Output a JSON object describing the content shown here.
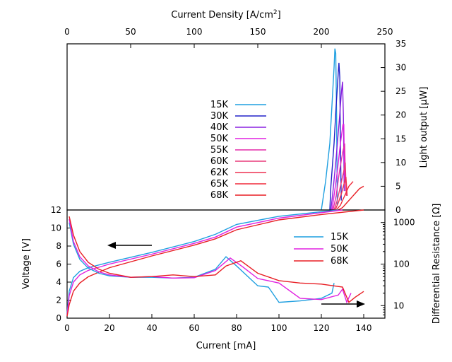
{
  "chart_data": [
    {
      "panel": "top",
      "type": "line",
      "x2label": "Current Density [A/cm²]",
      "x2lim": [
        0,
        250
      ],
      "x2ticks": [
        0,
        50,
        100,
        150,
        200,
        250
      ],
      "ylabel_right": "Light output [μW]",
      "ylim": [
        0,
        35
      ],
      "yticks": [
        0,
        5,
        10,
        15,
        20,
        25,
        30,
        35
      ],
      "grid": false,
      "legend_placement": "center-left",
      "series": [
        {
          "name": "15K",
          "color": "#1f9fe0",
          "x": [
            120,
            122,
            124,
            125,
            126,
            126.4,
            126.8,
            127.2,
            127.5
          ],
          "y": [
            0,
            6,
            14,
            22,
            30,
            34,
            33,
            20,
            1
          ]
        },
        {
          "name": "30K",
          "color": "#2020c8",
          "x": [
            124,
            124.5,
            126,
            127,
            128,
            128.3,
            128.7,
            129,
            129.4
          ],
          "y": [
            0,
            5,
            14,
            22,
            29,
            31,
            28,
            14,
            2
          ]
        },
        {
          "name": "40K",
          "color": "#8a20e0",
          "x": [
            124.5,
            125.5,
            127,
            128.5,
            129.5,
            130,
            130.4,
            130.8
          ],
          "y": [
            0,
            4,
            11,
            19,
            25,
            27,
            20,
            4
          ]
        },
        {
          "name": "50K",
          "color": "#e020e0",
          "x": [
            125,
            126,
            127.5,
            129,
            130.2,
            130.6,
            131
          ],
          "y": [
            0,
            3,
            8,
            14,
            18,
            18,
            6
          ]
        },
        {
          "name": "55K",
          "color": "#e42aaa",
          "x": [
            125.5,
            127,
            128.5,
            130,
            131,
            131.5
          ],
          "y": [
            0,
            3,
            8,
            12,
            14,
            4
          ]
        },
        {
          "name": "60K",
          "color": "#e83a7a",
          "x": [
            126,
            127.5,
            129,
            130.5,
            131.3,
            131.8
          ],
          "y": [
            0,
            2,
            5,
            8,
            10,
            3
          ]
        },
        {
          "name": "62K",
          "color": "#ee3050",
          "x": [
            126.5,
            128,
            129.5,
            131,
            131.6,
            132.2
          ],
          "y": [
            0,
            1.5,
            3.5,
            6,
            7,
            3
          ]
        },
        {
          "name": "65K",
          "color": "#f02a3a",
          "x": [
            127,
            129,
            131,
            133,
            135
          ],
          "y": [
            0,
            1,
            3,
            5,
            6
          ]
        },
        {
          "name": "68K",
          "color": "#e81e24",
          "x": [
            128,
            130,
            132,
            134,
            136,
            138,
            140
          ],
          "y": [
            0,
            0.5,
            1.5,
            2.5,
            3.5,
            4.5,
            5
          ]
        }
      ]
    },
    {
      "panel": "bottom",
      "type": "line",
      "xlabel": "Current [mA]",
      "xlim": [
        0,
        150
      ],
      "xticks": [
        0,
        20,
        40,
        60,
        80,
        100,
        120,
        140
      ],
      "ylabel": "Voltage [V]",
      "ylim": [
        0,
        12
      ],
      "yticks": [
        0,
        2,
        4,
        6,
        8,
        10,
        12
      ],
      "y2label": "Differential Resistance [Ω]",
      "y2scale": "log",
      "y2lim": [
        5,
        2000
      ],
      "y2ticks": [
        10,
        100,
        1000
      ],
      "grid": false,
      "legend_placement": "top-right",
      "legend": [
        "15K",
        "50K",
        "68K"
      ],
      "voltage_series": [
        {
          "name": "15K",
          "color": "#1f9fe0",
          "x": [
            0,
            1,
            3,
            6,
            10,
            20,
            40,
            60,
            70,
            80,
            100,
            120,
            128
          ],
          "y": [
            0.5,
            3,
            4.5,
            5.2,
            5.6,
            6.2,
            7.3,
            8.5,
            9.3,
            10.4,
            11.3,
            11.8,
            12
          ]
        },
        {
          "name": "50K",
          "color": "#e020e0",
          "x": [
            0,
            1,
            3,
            6,
            10,
            20,
            40,
            60,
            70,
            80,
            100,
            120,
            130
          ],
          "y": [
            0.3,
            2.5,
            4,
            4.8,
            5.3,
            6,
            7.1,
            8.3,
            9,
            10.1,
            11.1,
            11.7,
            12
          ]
        },
        {
          "name": "68K",
          "color": "#e81e24",
          "x": [
            0,
            1,
            3,
            6,
            10,
            20,
            40,
            60,
            70,
            80,
            100,
            120,
            140
          ],
          "y": [
            0.2,
            1.5,
            3,
            3.9,
            4.6,
            5.6,
            6.9,
            8.1,
            8.8,
            9.8,
            10.9,
            11.5,
            12
          ]
        }
      ],
      "resistance_series": [
        {
          "name": "15K",
          "color": "#1f9fe0",
          "x": [
            1,
            3,
            6,
            10,
            15,
            20,
            30,
            40,
            50,
            60,
            70,
            75,
            80,
            90,
            95,
            100,
            110,
            120,
            125,
            126
          ],
          "y": [
            1000,
            300,
            130,
            80,
            60,
            52,
            48,
            48,
            46,
            48,
            75,
            150,
            90,
            30,
            28,
            12,
            13,
            15,
            20,
            35
          ]
        },
        {
          "name": "50K",
          "color": "#e020e0",
          "x": [
            1,
            3,
            6,
            10,
            15,
            20,
            30,
            40,
            50,
            60,
            70,
            77,
            83,
            90,
            100,
            110,
            120,
            128,
            130,
            132,
            134
          ],
          "y": [
            1200,
            350,
            150,
            90,
            65,
            55,
            48,
            50,
            46,
            47,
            70,
            140,
            85,
            45,
            35,
            15,
            14,
            18,
            25,
            12,
            20
          ]
        },
        {
          "name": "68K",
          "color": "#e81e24",
          "x": [
            1,
            3,
            6,
            10,
            15,
            20,
            30,
            40,
            50,
            60,
            70,
            75,
            82,
            90,
            100,
            110,
            120,
            130,
            133,
            136,
            140
          ],
          "y": [
            1400,
            500,
            200,
            110,
            75,
            60,
            48,
            50,
            55,
            50,
            55,
            90,
            120,
            60,
            40,
            35,
            33,
            28,
            12,
            16,
            22
          ]
        }
      ]
    }
  ]
}
